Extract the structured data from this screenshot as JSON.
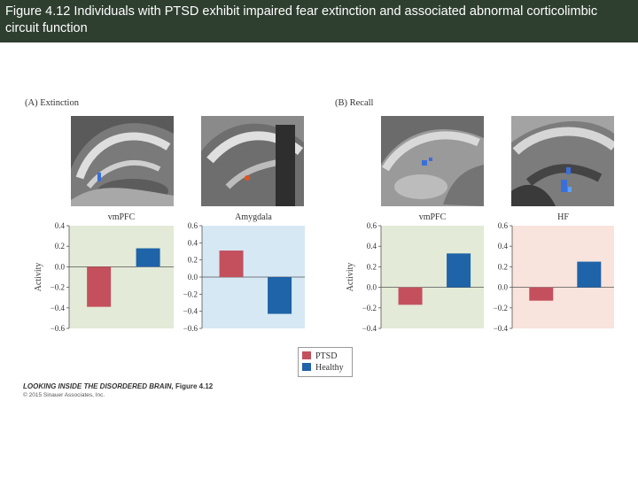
{
  "header": {
    "title": "Figure 4.12 Individuals with PTSD exhibit impaired fear extinction and associated abnormal corticolimbic circuit function"
  },
  "panels": [
    {
      "label": "(A) Extinction"
    },
    {
      "label": "(B) Recall"
    }
  ],
  "brain_images": [
    {
      "icon": "brain-scan-vmpfc-extinction",
      "blob_color": "#3a6fd8"
    },
    {
      "icon": "brain-scan-amygdala-extinction",
      "blob_color": "#e0541c"
    },
    {
      "icon": "brain-scan-vmpfc-recall",
      "blob_color": "#3a6fd8"
    },
    {
      "icon": "brain-scan-hf-recall",
      "blob_color": "#3a6fd8"
    }
  ],
  "chart_data": [
    {
      "type": "bar",
      "title": "vmPFC",
      "ylabel": "Activity",
      "categories": [
        "PTSD",
        "Healthy"
      ],
      "values": [
        -0.39,
        0.18
      ],
      "ylim": [
        -0.6,
        0.4
      ],
      "yticks": [
        "0.4",
        "0.2",
        "0.0",
        "−0.2",
        "−0.4",
        "−0.6"
      ],
      "background": "#e3ead7"
    },
    {
      "type": "bar",
      "title": "Amygdala",
      "ylabel": "",
      "categories": [
        "PTSD",
        "Healthy"
      ],
      "values": [
        0.31,
        -0.43
      ],
      "ylim": [
        -0.6,
        0.6
      ],
      "yticks": [
        "0.6",
        "0.4",
        "0.2",
        "0.0",
        "−0.2",
        "−0.4",
        "−0.6"
      ],
      "background": "#d6e8f3"
    },
    {
      "type": "bar",
      "title": "vmPFC",
      "ylabel": "Activity",
      "categories": [
        "PTSD",
        "Healthy"
      ],
      "values": [
        -0.17,
        0.33
      ],
      "ylim": [
        -0.4,
        0.6
      ],
      "yticks": [
        "0.6",
        "0.4",
        "0.2",
        "0.0",
        "−0.2",
        "−0.4"
      ],
      "background": "#e3ead7"
    },
    {
      "type": "bar",
      "title": "HF",
      "ylabel": "",
      "categories": [
        "PTSD",
        "Healthy"
      ],
      "values": [
        -0.13,
        0.25
      ],
      "ylim": [
        -0.4,
        0.6
      ],
      "yticks": [
        "0.6",
        "0.4",
        "0.2",
        "0.0",
        "−0.2",
        "−0.4"
      ],
      "background": "#f9e3dd"
    }
  ],
  "legend": {
    "placement": "bottom-center",
    "items": [
      {
        "label": "PTSD",
        "color": "#c4505e"
      },
      {
        "label": "Healthy",
        "color": "#1f63a8"
      }
    ]
  },
  "footer": {
    "book_title": "LOOKING INSIDE THE DISORDERED BRAIN, ",
    "figure_ref": "Figure 4.12",
    "copyright": "© 2015 Sinauer Associates, Inc."
  }
}
